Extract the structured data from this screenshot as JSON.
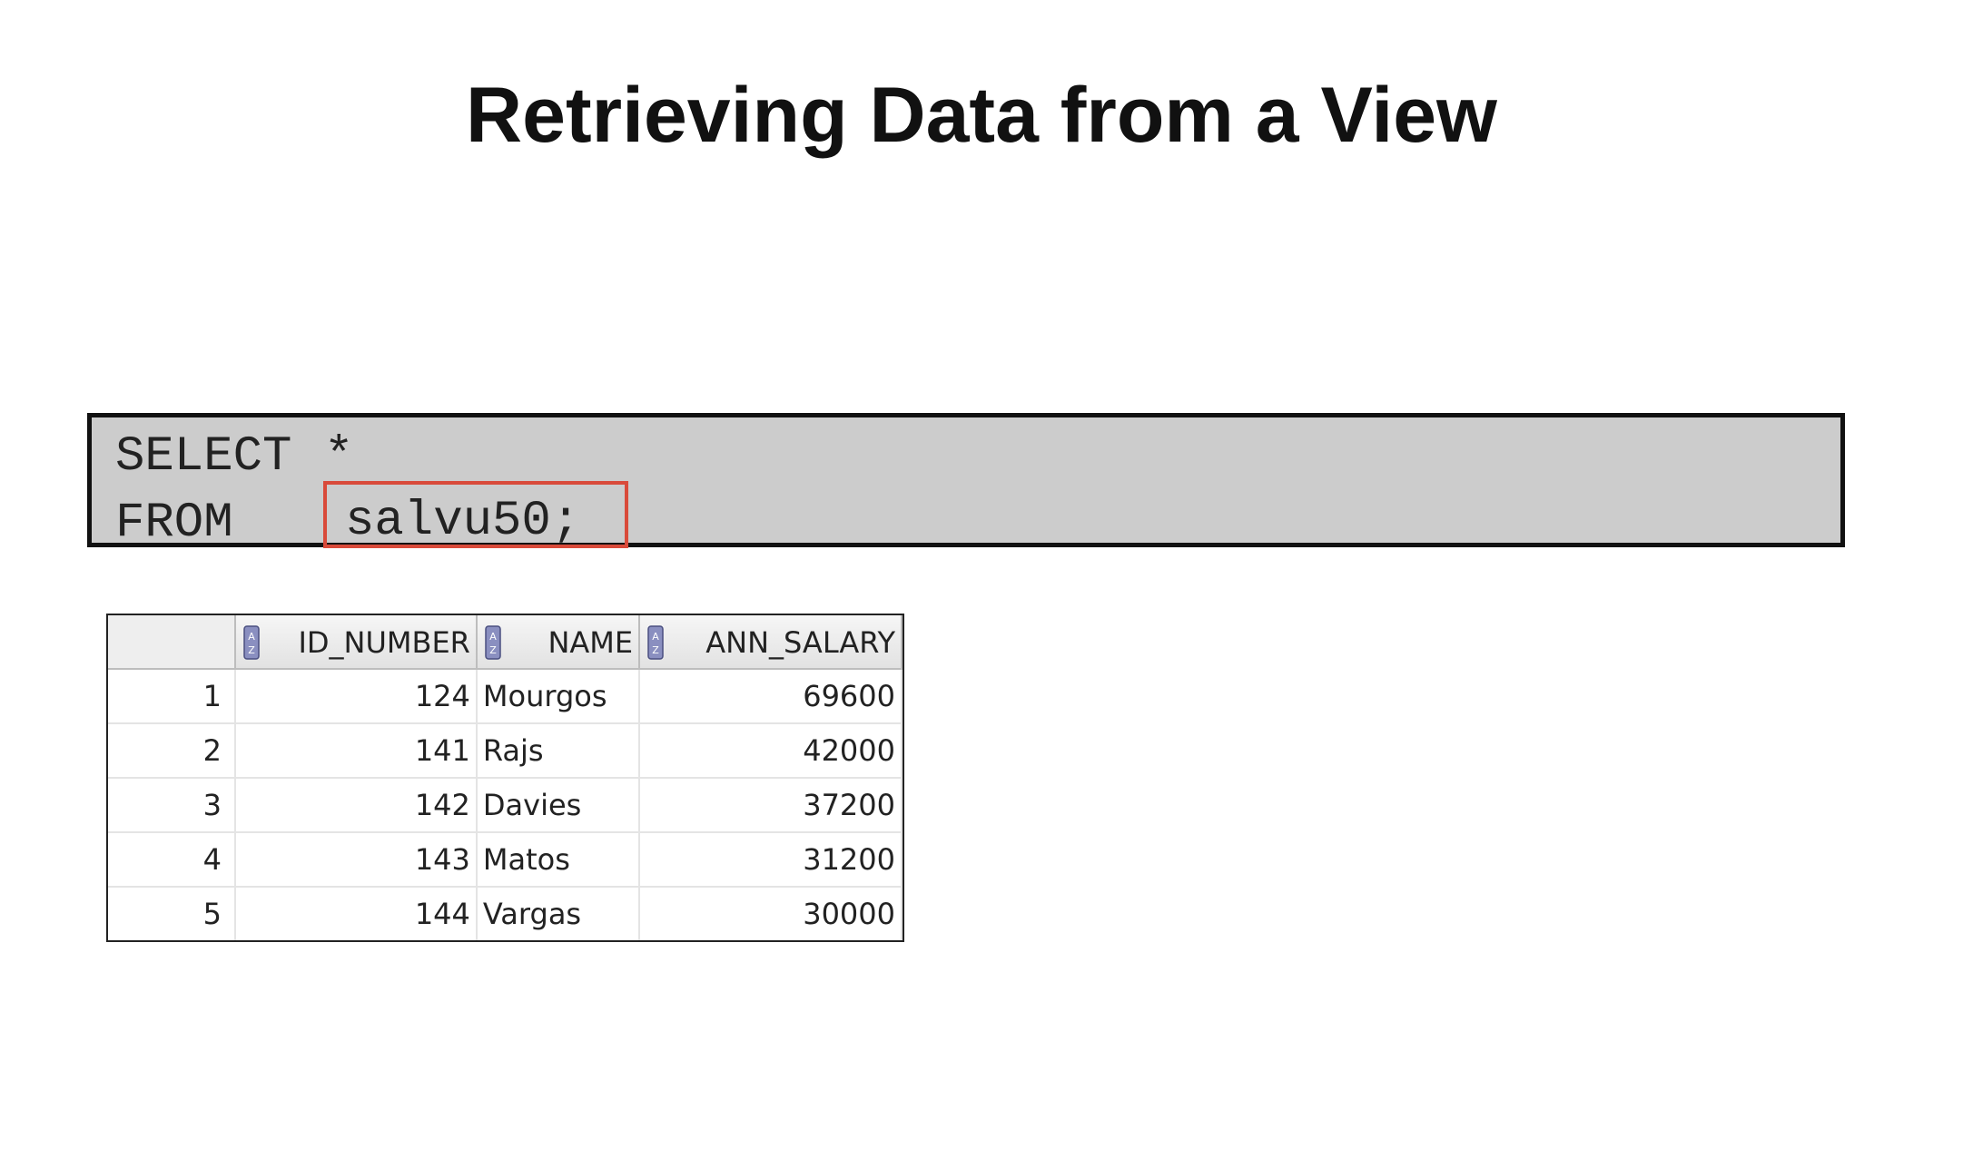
{
  "slide": {
    "title": "Retrieving Data from a View"
  },
  "code": {
    "line1_keyword": "SELECT",
    "line1_rest": "*",
    "line2_keyword": "FROM",
    "line2_object": "salvu50;"
  },
  "colors": {
    "highlight_border": "#d94a3a",
    "code_background": "#cccccc"
  },
  "results": {
    "columns": [
      "ID_NUMBER",
      "NAME",
      "ANN_SALARY"
    ],
    "column_icon": "sort-az-icon",
    "rows": [
      {
        "row": "1",
        "id_number": "124",
        "name": "Mourgos",
        "ann_salary": "69600"
      },
      {
        "row": "2",
        "id_number": "141",
        "name": "Rajs",
        "ann_salary": "42000"
      },
      {
        "row": "3",
        "id_number": "142",
        "name": "Davies",
        "ann_salary": "37200"
      },
      {
        "row": "4",
        "id_number": "143",
        "name": "Matos",
        "ann_salary": "31200"
      },
      {
        "row": "5",
        "id_number": "144",
        "name": "Vargas",
        "ann_salary": "30000"
      }
    ]
  }
}
